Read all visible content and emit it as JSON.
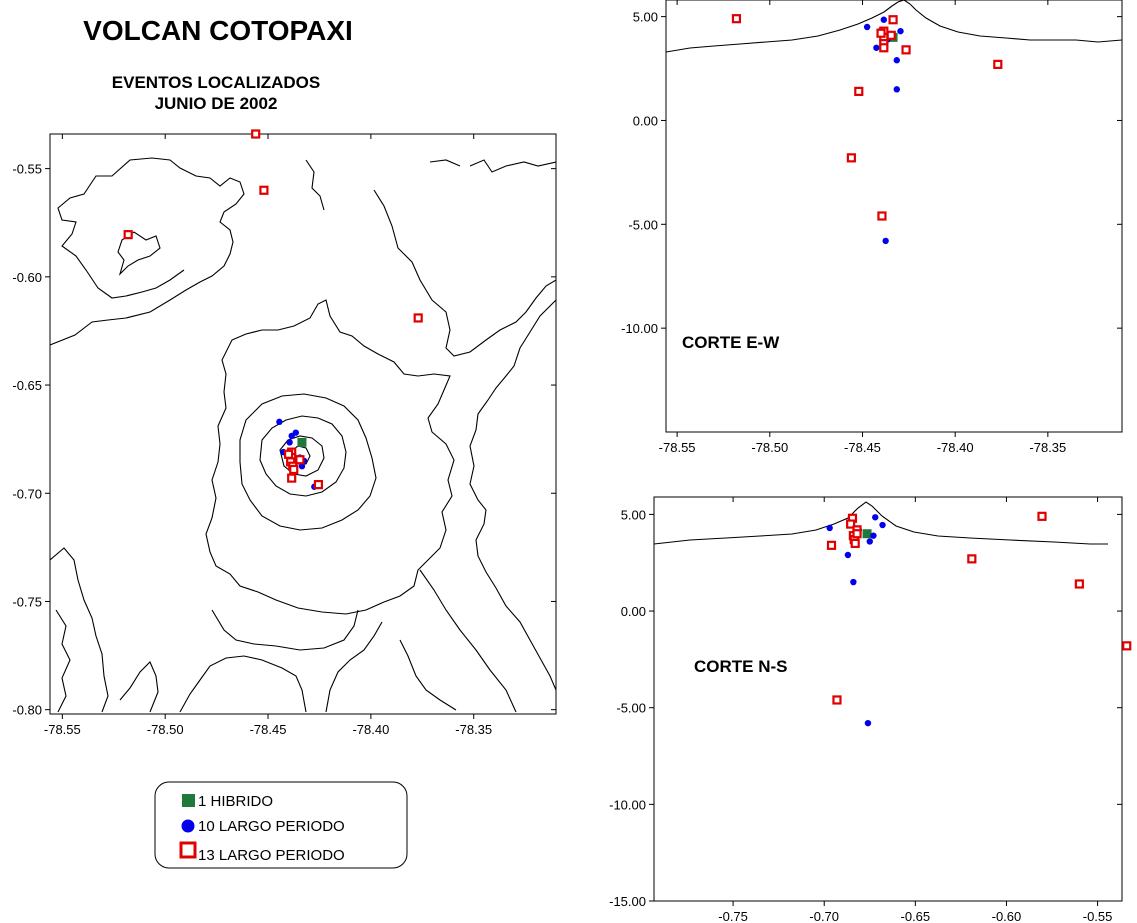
{
  "header": {
    "title": "VOLCAN COTOPAXI",
    "subtitle_line1": "EVENTOS LOCALIZADOS",
    "subtitle_line2": "JUNIO DE 2002"
  },
  "legend": {
    "items": [
      {
        "label": "1 HIBRIDO",
        "marker": "square",
        "color": "#1f7a3a"
      },
      {
        "label": "10 LARGO PERIODO",
        "marker": "circle",
        "color": "#0000ee"
      },
      {
        "label": "13 LARGO PERIODO",
        "marker": "open-square",
        "color": "#e00000"
      }
    ]
  },
  "colors": {
    "hibrido": "#1f7a3a",
    "lp_blue": "#0000ee",
    "lp_red": "#e00000"
  },
  "chart_data": [
    {
      "id": "map",
      "type": "scatter",
      "title": "",
      "xlabel": "",
      "ylabel": "",
      "xlim": [
        -78.556,
        -78.31
      ],
      "ylim": [
        -0.802,
        -0.534
      ],
      "xticks": [
        -78.55,
        -78.5,
        -78.45,
        -78.4,
        -78.35
      ],
      "xtick_labels": [
        "-78.55",
        "-78.50",
        "-78.45",
        "-78.40",
        "-78.35"
      ],
      "yticks": [
        -0.55,
        -0.6,
        -0.65,
        -0.7,
        -0.75,
        -0.8
      ],
      "ytick_labels": [
        "-0.55",
        "-0.60",
        "-0.65",
        "-0.70",
        "-0.75",
        "-0.80"
      ],
      "series": [
        {
          "marker": "square",
          "color": "#1f7a3a",
          "points": [
            [
              -78.4335,
              -0.6765
            ]
          ]
        },
        {
          "marker": "circle",
          "color": "#0000ee",
          "points": [
            [
              -78.4445,
              -0.667
            ],
            [
              -78.4365,
              -0.672
            ],
            [
              -78.4385,
              -0.6735
            ],
            [
              -78.4395,
              -0.6765
            ],
            [
              -78.4425,
              -0.681
            ],
            [
              -78.4345,
              -0.6835
            ],
            [
              -78.4325,
              -0.685
            ],
            [
              -78.4335,
              -0.6875
            ],
            [
              -78.4385,
              -0.6855
            ],
            [
              -78.4275,
              -0.697
            ]
          ]
        },
        {
          "marker": "open-square",
          "color": "#e00000",
          "points": [
            [
              -78.456,
              -0.534
            ],
            [
              -78.452,
              -0.56
            ],
            [
              -78.518,
              -0.5805
            ],
            [
              -78.377,
              -0.619
            ],
            [
              -78.4385,
              -0.681
            ],
            [
              -78.4385,
              -0.6835
            ],
            [
              -78.439,
              -0.6855
            ],
            [
              -78.438,
              -0.6875
            ],
            [
              -78.4375,
              -0.689
            ],
            [
              -78.4345,
              -0.6845
            ],
            [
              -78.4385,
              -0.693
            ],
            [
              -78.4255,
              -0.696
            ],
            [
              -78.44,
              -0.682
            ]
          ]
        }
      ]
    },
    {
      "id": "corte-ew",
      "type": "scatter",
      "title": "",
      "label": "CORTE E-W",
      "xlabel": "",
      "ylabel": "",
      "xlim": [
        -78.556,
        -78.31
      ],
      "ylim": [
        -15.0,
        5.8
      ],
      "xticks": [
        -78.55,
        -78.5,
        -78.45,
        -78.4,
        -78.35
      ],
      "xtick_labels": [
        "-78.55",
        "-78.50",
        "-78.45",
        "-78.40",
        "-78.35"
      ],
      "yticks": [
        5.0,
        0.0,
        -5.0,
        -10.0
      ],
      "ytick_labels": [
        "5.00",
        "0.00",
        "-5.00",
        "-10.00"
      ],
      "series": [
        {
          "marker": "square",
          "color": "#1f7a3a",
          "points": [
            [
              -78.4335,
              4.0
            ]
          ]
        },
        {
          "marker": "circle",
          "color": "#0000ee",
          "points": [
            [
              -78.4475,
              4.5
            ],
            [
              -78.4385,
              4.85
            ],
            [
              -78.4405,
              4.3
            ],
            [
              -78.4365,
              3.9
            ],
            [
              -78.4425,
              3.5
            ],
            [
              -78.4295,
              4.3
            ],
            [
              -78.4315,
              2.9
            ],
            [
              -78.4315,
              1.5
            ],
            [
              -78.4385,
              3.6
            ],
            [
              -78.4375,
              -5.8
            ]
          ]
        },
        {
          "marker": "open-square",
          "color": "#e00000",
          "points": [
            [
              -78.518,
              4.9
            ],
            [
              -78.4335,
              4.85
            ],
            [
              -78.4385,
              4.3
            ],
            [
              -78.4385,
              4.0
            ],
            [
              -78.4385,
              3.7
            ],
            [
              -78.4385,
              3.5
            ],
            [
              -78.4265,
              3.4
            ],
            [
              -78.377,
              2.7
            ],
            [
              -78.452,
              1.4
            ],
            [
              -78.456,
              -1.8
            ],
            [
              -78.4395,
              -4.6
            ],
            [
              -78.44,
              4.2
            ],
            [
              -78.4345,
              4.1
            ]
          ]
        }
      ]
    },
    {
      "id": "corte-ns",
      "type": "scatter",
      "title": "",
      "label": "CORTE N-S",
      "xlabel": "",
      "ylabel": "",
      "xlim": [
        -0.7934,
        -0.5366
      ],
      "ylim": [
        -15.0,
        5.9
      ],
      "xticks": [
        -0.75,
        -0.7,
        -0.65,
        -0.6,
        -0.55
      ],
      "xtick_labels": [
        "-0.75",
        "-0.70",
        "-0.65",
        "-0.60",
        "-0.55"
      ],
      "yticks": [
        5.0,
        0.0,
        -5.0,
        -10.0,
        -15.0
      ],
      "ytick_labels": [
        "5.00",
        "0.00",
        "-5.00",
        "-10.00",
        "-15.00"
      ],
      "series": [
        {
          "marker": "square",
          "color": "#1f7a3a",
          "points": [
            [
              -0.6765,
              4.0
            ]
          ]
        },
        {
          "marker": "circle",
          "color": "#0000ee",
          "points": [
            [
              -0.697,
              4.3
            ],
            [
              -0.685,
              4.5
            ],
            [
              -0.672,
              4.85
            ],
            [
              -0.668,
              4.45
            ],
            [
              -0.673,
              3.9
            ],
            [
              -0.681,
              4.2
            ],
            [
              -0.687,
              2.9
            ],
            [
              -0.684,
              1.5
            ],
            [
              -0.675,
              3.6
            ],
            [
              -0.676,
              -5.8
            ]
          ]
        },
        {
          "marker": "open-square",
          "color": "#e00000",
          "points": [
            [
              -0.6845,
              4.8
            ],
            [
              -0.6855,
              4.5
            ],
            [
              -0.682,
              4.2
            ],
            [
              -0.684,
              3.9
            ],
            [
              -0.6835,
              3.7
            ],
            [
              -0.683,
              3.5
            ],
            [
              -0.696,
              3.4
            ],
            [
              -0.619,
              2.7
            ],
            [
              -0.5805,
              4.9
            ],
            [
              -0.56,
              1.4
            ],
            [
              -0.534,
              -1.8
            ],
            [
              -0.693,
              -4.6
            ],
            [
              -0.682,
              4.0
            ]
          ]
        }
      ]
    }
  ]
}
